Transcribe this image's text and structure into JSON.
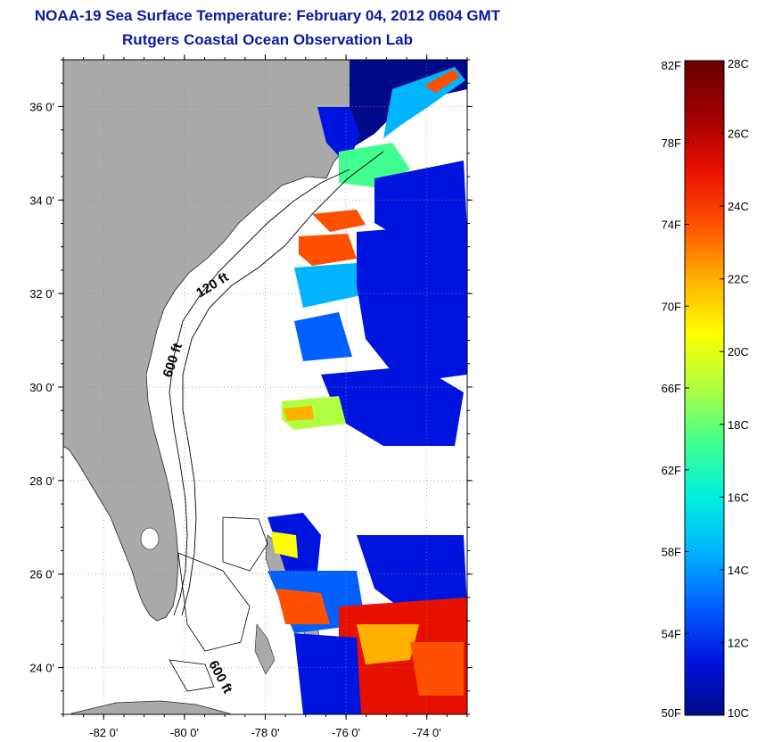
{
  "title": {
    "line1": "NOAA-19 Sea Surface Temperature:  February 04, 2012 0604 GMT",
    "line2": "Rutgers Coastal Ocean Observation Lab"
  },
  "map": {
    "lat_ticks": [
      {
        "value": 36,
        "label": "36 0'"
      },
      {
        "value": 34,
        "label": "34 0'"
      },
      {
        "value": 32,
        "label": "32 0'"
      },
      {
        "value": 30,
        "label": "30 0'"
      },
      {
        "value": 28,
        "label": "28 0'"
      },
      {
        "value": 26,
        "label": "26 0'"
      },
      {
        "value": 24,
        "label": "24 0'"
      }
    ],
    "lon_ticks": [
      {
        "value": -82,
        "label": "-82 0'"
      },
      {
        "value": -80,
        "label": "-80 0'"
      },
      {
        "value": -78,
        "label": "-78 0'"
      },
      {
        "value": -76,
        "label": "-76 0'"
      },
      {
        "value": -74,
        "label": "-74 0'"
      }
    ],
    "lat_range": [
      23,
      37
    ],
    "lon_range": [
      -83,
      -73
    ],
    "contour_labels": {
      "c120": "120 ft",
      "c600a": "600 ft",
      "c600b": "600 ft"
    },
    "colors": {
      "land": "#aaaaaa",
      "ocean": "#ffffff",
      "grid": "#888888"
    }
  },
  "colorbar": {
    "fahrenheit": [
      "82F",
      "78F",
      "74F",
      "70F",
      "66F",
      "62F",
      "58F",
      "54F",
      "50F"
    ],
    "celsius": [
      "28C",
      "26C",
      "24C",
      "22C",
      "20C",
      "18C",
      "16C",
      "14C",
      "12C",
      "10C"
    ],
    "colors": [
      "#000a8a",
      "#0014e0",
      "#0060ff",
      "#00b4ff",
      "#00f0e0",
      "#40ff90",
      "#b0ff40",
      "#ffff00",
      "#ffb000",
      "#ff5000",
      "#e81000",
      "#a00000",
      "#6a0000"
    ]
  }
}
